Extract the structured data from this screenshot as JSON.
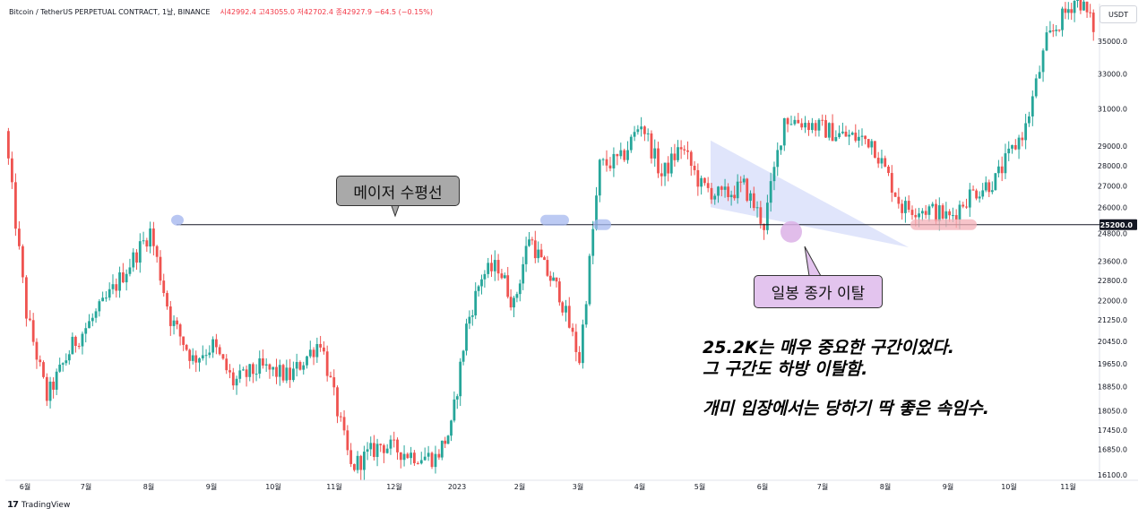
{
  "header": {
    "symbol": "Bitcoin / TetherUS PERPETUAL CONTRACT, 1날, BINANCE",
    "open_label": "시",
    "open": "42992.4",
    "high_label": "고",
    "high": "43055.0",
    "low_label": "저",
    "low": "42702.4",
    "close_label": "종",
    "close": "42927.9",
    "change": "−64.5 (−0.15%)"
  },
  "currency_button": "USDT",
  "footer_brand": "TradingView",
  "annotations": {
    "callout_level": "메이저 수평선",
    "callout_break": "일봉 종가 이탈",
    "note_line1": "25.2K는 매우 중요한 구간이었다.",
    "note_line2": "그 구간도 하방 이탈함.",
    "note_line3": "개미 입장에서는 당하기 딱 좋은 속임수."
  },
  "colors": {
    "up": "#26a69a",
    "down": "#ef5350",
    "level_line": "#131722",
    "triangle_fill": "#c7d0f7",
    "marker_blue": "#a6b8ef",
    "marker_pink": "#f4b0b8",
    "marker_purple": "#dcb2e6"
  },
  "chart_data": {
    "type": "candlestick",
    "symbol": "BTCUSDT.P",
    "interval": "1D",
    "price_scale": "log",
    "y_ticks": [
      35000.0,
      33000.0,
      31000.0,
      29000.0,
      28000.0,
      27000.0,
      26000.0,
      24800.0,
      23600.0,
      22800.0,
      22000.0,
      21250.0,
      20450.0,
      19650.0,
      18850.0,
      18050.0,
      17450.0,
      16850.0,
      16100.0
    ],
    "y_tick_labels": [
      "35000.0",
      "33000.0",
      "31000.0",
      "29000.0",
      "28000.0",
      "27000.0",
      "26000.0",
      "24800.0",
      "23600.0",
      "22800.0",
      "22000.0",
      "21250.0",
      "20450.0",
      "19650.0",
      "18850.0",
      "18050.0",
      "17450.0",
      "16850.0",
      "16100.0"
    ],
    "x_labels": [
      "6월",
      "7월",
      "8월",
      "9월",
      "10월",
      "11월",
      "12월",
      "2023",
      "2월",
      "3월",
      "4월",
      "5월",
      "6월",
      "7월",
      "8월",
      "9월",
      "10월",
      "11월"
    ],
    "ylim": [
      15800,
      38000
    ],
    "horizontal_level": 25200.0,
    "horizontal_level_label": "25200.0",
    "anchors": [
      {
        "month": "6월 2022",
        "price": 29800
      },
      {
        "month": "6월 2022",
        "price": 21500
      },
      {
        "month": "6월 2022",
        "price": 18500
      },
      {
        "month": "7월 2022",
        "price": 20300
      },
      {
        "month": "7월 2022",
        "price": 21800
      },
      {
        "month": "8월 2022",
        "price": 23500
      },
      {
        "month": "8월 2022",
        "price": 24900
      },
      {
        "month": "8월 2022",
        "price": 21300
      },
      {
        "month": "9월 2022",
        "price": 19800
      },
      {
        "month": "9월 2022",
        "price": 20300
      },
      {
        "month": "9월 2022",
        "price": 19000
      },
      {
        "month": "10월 2022",
        "price": 19500
      },
      {
        "month": "10월 2022",
        "price": 19200
      },
      {
        "month": "11월 2022",
        "price": 20500
      },
      {
        "month": "11월 2022",
        "price": 16300
      },
      {
        "month": "12월 2022",
        "price": 17000
      },
      {
        "month": "12월 2022",
        "price": 16700
      },
      {
        "month": "2023",
        "price": 16600
      },
      {
        "month": "2023",
        "price": 17500
      },
      {
        "month": "2023",
        "price": 21000
      },
      {
        "month": "2023",
        "price": 23000
      },
      {
        "month": "2월 2023",
        "price": 23400
      },
      {
        "month": "2월 2023",
        "price": 21800
      },
      {
        "month": "2월 2023",
        "price": 24700
      },
      {
        "month": "2월 2023",
        "price": 23300
      },
      {
        "month": "3월 2023",
        "price": 22300
      },
      {
        "month": "3월 2023",
        "price": 19800
      },
      {
        "month": "3월 2023",
        "price": 28000
      },
      {
        "month": "4월 2023",
        "price": 28300
      },
      {
        "month": "4월 2023",
        "price": 30300
      },
      {
        "month": "4월 2023",
        "price": 27500
      },
      {
        "month": "5월 2023",
        "price": 29000
      },
      {
        "month": "5월 2023",
        "price": 27000
      },
      {
        "month": "5월 2023",
        "price": 26500
      },
      {
        "month": "6월 2023",
        "price": 27000
      },
      {
        "month": "6월 2023",
        "price": 25200
      },
      {
        "month": "6월 2023",
        "price": 30500
      },
      {
        "month": "7월 2023",
        "price": 30200
      },
      {
        "month": "7월 2023",
        "price": 29600
      },
      {
        "month": "8월 2023",
        "price": 29300
      },
      {
        "month": "8월 2023",
        "price": 26000
      },
      {
        "month": "9월 2023",
        "price": 25900
      },
      {
        "month": "9월 2023",
        "price": 25500
      },
      {
        "month": "9월 2023",
        "price": 26600
      },
      {
        "month": "10월 2023",
        "price": 27300
      },
      {
        "month": "10월 2023",
        "price": 30000
      },
      {
        "month": "11월 2023",
        "price": 35000
      },
      {
        "month": "11월 2023",
        "price": 36500
      },
      {
        "month": "11월 2023",
        "price": 38000
      },
      {
        "month": "11월 2023",
        "price": 35500
      }
    ],
    "pattern": {
      "type": "descending-triangle",
      "upper_start": {
        "month": "5월 2023",
        "price": 29300
      },
      "lower_start": {
        "month": "5월 2023",
        "price": 26000
      },
      "apex": {
        "month": "8월 2023",
        "price": 24200
      }
    }
  }
}
